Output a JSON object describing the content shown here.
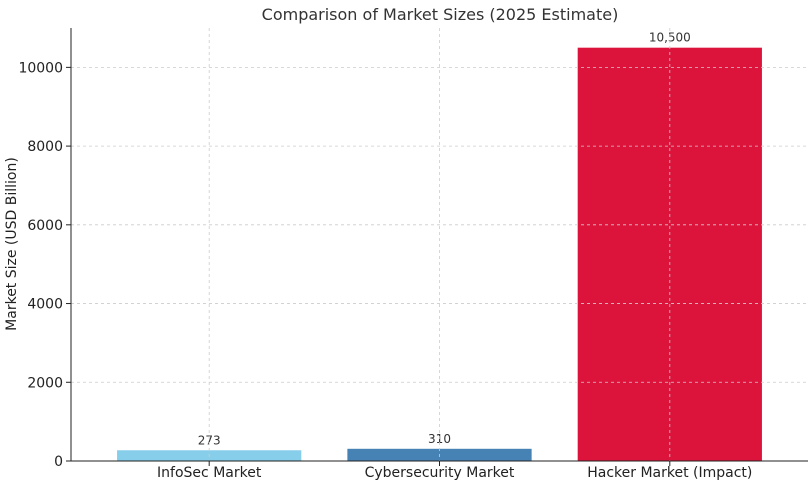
{
  "chart_data": {
    "type": "bar",
    "title": "Comparison of Market Sizes (2025 Estimate)",
    "xlabel": "",
    "ylabel": "Market Size (USD Billion)",
    "categories": [
      "InfoSec Market",
      "Cybersecurity Market",
      "Hacker Market (Impact)"
    ],
    "values": [
      273,
      310,
      10500
    ],
    "data_labels": [
      "273",
      "310",
      "10,500"
    ],
    "colors": [
      "#87ceeb",
      "#4682b4",
      "#dc143c"
    ],
    "ylim": [
      0,
      11000
    ],
    "yticks": [
      0,
      2000,
      4000,
      6000,
      8000,
      10000
    ],
    "ytick_labels": [
      "0",
      "2000",
      "4000",
      "6000",
      "8000",
      "10000"
    ],
    "grid": true,
    "legend": "none"
  }
}
